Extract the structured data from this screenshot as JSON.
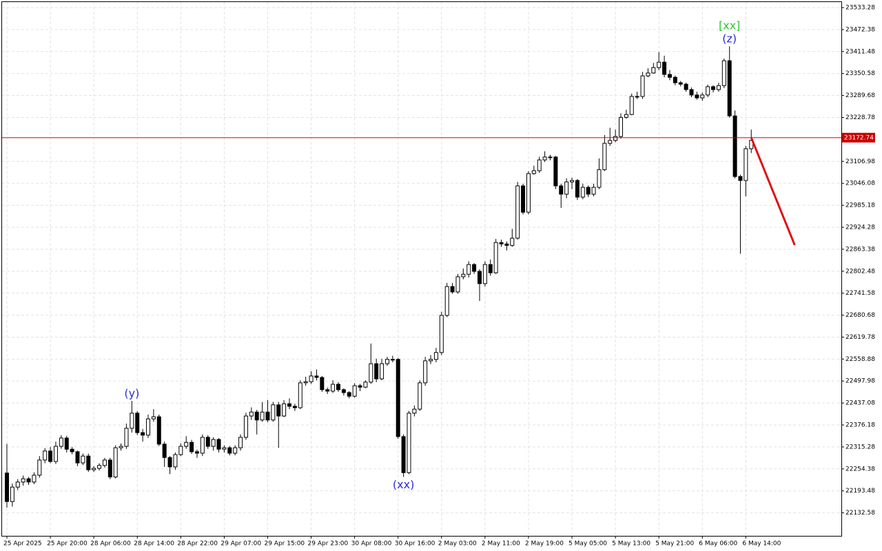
{
  "chart_data": {
    "type": "candlestick",
    "categories": [
      "25 Apr 2025",
      null,
      null,
      null,
      null,
      null,
      null,
      null,
      "25 Apr 20:00",
      null,
      null,
      null,
      null,
      null,
      null,
      null,
      "28 Apr 06:00",
      null,
      null,
      null,
      null,
      null,
      null,
      null,
      "28 Apr 14:00",
      null,
      null,
      null,
      null,
      null,
      null,
      null,
      "28 Apr 22:00",
      null,
      null,
      null,
      null,
      null,
      null,
      null,
      "29 Apr 07:00",
      null,
      null,
      null,
      null,
      null,
      null,
      null,
      "29 Apr 15:00",
      null,
      null,
      null,
      null,
      null,
      null,
      null,
      "29 Apr 23:00",
      null,
      null,
      null,
      null,
      null,
      null,
      null,
      "30 Apr 08:00",
      null,
      null,
      null,
      null,
      null,
      null,
      null,
      "30 Apr 16:00",
      null,
      null,
      null,
      null,
      null,
      null,
      null,
      "2 May 03:00",
      null,
      null,
      null,
      null,
      null,
      null,
      null,
      "2 May 11:00",
      null,
      null,
      null,
      null,
      null,
      null,
      null,
      "2 May 19:00",
      null,
      null,
      null,
      null,
      null,
      null,
      null,
      "5 May 05:00",
      null,
      null,
      null,
      null,
      null,
      null,
      null,
      "5 May 13:00",
      null,
      null,
      null,
      null,
      null,
      null,
      null,
      "5 May 21:00",
      null,
      null,
      null,
      null,
      null,
      null,
      null,
      "6 May 06:00",
      null,
      null,
      null,
      null,
      null,
      null,
      null,
      "6 May 14:00",
      null
    ],
    "open": [
      22243,
      22164,
      22204,
      22218,
      22227,
      22218,
      22237,
      22279,
      22304,
      22275,
      22317,
      22340,
      22309,
      22302,
      22271,
      22290,
      22252,
      22256,
      22264,
      22279,
      22232,
      22313,
      22317,
      22367,
      22409,
      22355,
      22348,
      22393,
      22399,
      22323,
      22286,
      22260,
      22294,
      22317,
      22328,
      22302,
      22298,
      22342,
      22317,
      22336,
      22309,
      22313,
      22298,
      22313,
      22342,
      22401,
      22412,
      22390,
      22412,
      22390,
      22432,
      22401,
      22435,
      22428,
      22424,
      22493,
      22496,
      22512,
      22508,
      22474,
      22470,
      22489,
      22474,
      22466,
      22456,
      22485,
      22481,
      22495,
      22546,
      22504,
      22546,
      22558,
      22558,
      22344,
      22244,
      22409,
      22420,
      22493,
      22554,
      22558,
      22577,
      22680,
      22760,
      22745,
      22787,
      22794,
      22821,
      22802,
      22768,
      22821,
      22798,
      22882,
      22878,
      22874,
      22894,
      23039,
      22966,
      23073,
      23081,
      23111,
      23119,
      23119,
      23039,
      23016,
      23050,
      23054,
      23008,
      23035,
      23016,
      23035,
      23084,
      23157,
      23165,
      23176,
      23229,
      23237,
      23287,
      23287,
      23344,
      23352,
      23367,
      23382,
      23348,
      23340,
      23325,
      23321,
      23306,
      23291,
      23283,
      23291,
      23314,
      23306,
      23317,
      23386,
      23233,
      23065,
      23054,
      23142
    ],
    "high": [
      22324,
      22214,
      22226,
      22236,
      22232,
      22245,
      22290,
      22312,
      22315,
      22330,
      22348,
      22346,
      22315,
      22305,
      22297,
      22297,
      22262,
      22270,
      22285,
      22285,
      22320,
      22325,
      22380,
      22443,
      22415,
      22365,
      22405,
      22420,
      22405,
      22330,
      22290,
      22300,
      22325,
      22345,
      22335,
      22308,
      22350,
      22348,
      22342,
      22340,
      22320,
      22318,
      22320,
      22350,
      22410,
      22425,
      22418,
      22440,
      22445,
      22440,
      22440,
      22445,
      22450,
      22435,
      22500,
      22510,
      22525,
      22530,
      22512,
      22480,
      22500,
      22495,
      22478,
      22470,
      22492,
      22490,
      22500,
      22602,
      22560,
      22560,
      22565,
      22568,
      22562,
      22350,
      22415,
      22430,
      22500,
      22565,
      22570,
      22590,
      22690,
      22770,
      22770,
      22795,
      22810,
      22830,
      22825,
      22808,
      22830,
      22835,
      22892,
      22890,
      22885,
      22920,
      23050,
      23045,
      23080,
      23095,
      23120,
      23135,
      23125,
      23122,
      23045,
      23060,
      23062,
      23058,
      23045,
      23040,
      23045,
      23115,
      23180,
      23200,
      23195,
      23240,
      23250,
      23295,
      23300,
      23355,
      23365,
      23380,
      23410,
      23400,
      23360,
      23345,
      23330,
      23325,
      23312,
      23300,
      23298,
      23320,
      23318,
      23325,
      23392,
      23426,
      23248,
      23070,
      23150,
      23195
    ],
    "low": [
      22147,
      22150,
      22196,
      22208,
      22210,
      22212,
      22230,
      22270,
      22270,
      22268,
      22310,
      22300,
      22295,
      22262,
      22265,
      22246,
      22246,
      22250,
      22258,
      22226,
      22228,
      22305,
      22310,
      22355,
      22348,
      22330,
      22340,
      22385,
      22318,
      22260,
      22240,
      22252,
      22290,
      22310,
      22296,
      22285,
      22290,
      22310,
      22305,
      22300,
      22300,
      22292,
      22292,
      22305,
      22335,
      22390,
      22350,
      22385,
      22384,
      22385,
      22313,
      22398,
      22420,
      22415,
      22420,
      22485,
      22490,
      22500,
      22468,
      22462,
      22465,
      22468,
      22458,
      22450,
      22452,
      22470,
      22478,
      22490,
      22495,
      22500,
      22540,
      22550,
      22338,
      22232,
      22240,
      22400,
      22415,
      22485,
      22545,
      22550,
      22570,
      22675,
      22740,
      22740,
      22780,
      22785,
      22795,
      22720,
      22760,
      22790,
      22795,
      22870,
      22860,
      22870,
      22890,
      22960,
      22960,
      23070,
      23075,
      23105,
      23110,
      23030,
      22978,
      23005,
      23030,
      23000,
      23002,
      23008,
      23010,
      23030,
      23080,
      23150,
      23160,
      23170,
      23225,
      23235,
      23280,
      23280,
      23340,
      23350,
      23360,
      23340,
      23332,
      23318,
      23315,
      23300,
      23285,
      23278,
      23275,
      23285,
      23298,
      23300,
      23310,
      23228,
      23060,
      22851,
      23010,
      23130
    ],
    "close": [
      22164,
      22204,
      22218,
      22227,
      22218,
      22237,
      22279,
      22304,
      22275,
      22317,
      22340,
      22309,
      22302,
      22271,
      22290,
      22252,
      22256,
      22264,
      22279,
      22232,
      22313,
      22317,
      22367,
      22409,
      22355,
      22348,
      22393,
      22399,
      22323,
      22286,
      22260,
      22294,
      22317,
      22328,
      22302,
      22298,
      22342,
      22317,
      22336,
      22309,
      22313,
      22298,
      22313,
      22342,
      22401,
      22412,
      22390,
      22412,
      22390,
      22432,
      22401,
      22435,
      22428,
      22424,
      22493,
      22496,
      22512,
      22508,
      22474,
      22470,
      22489,
      22474,
      22466,
      22456,
      22485,
      22481,
      22495,
      22546,
      22504,
      22546,
      22558,
      22558,
      22344,
      22244,
      22409,
      22420,
      22493,
      22554,
      22558,
      22577,
      22680,
      22760,
      22745,
      22787,
      22794,
      22821,
      22802,
      22768,
      22821,
      22798,
      22882,
      22878,
      22874,
      22894,
      23039,
      22966,
      23073,
      23081,
      23111,
      23119,
      23119,
      23039,
      23016,
      23050,
      23054,
      23008,
      23035,
      23016,
      23035,
      23084,
      23157,
      23165,
      23176,
      23229,
      23237,
      23287,
      23287,
      23344,
      23352,
      23367,
      23382,
      23348,
      23340,
      23325,
      23321,
      23306,
      23291,
      23283,
      23291,
      23314,
      23306,
      23317,
      23386,
      23233,
      23065,
      23054,
      23142,
      23165
    ],
    "up_color": "#ffffff",
    "down_color": "#000000",
    "ylim": [
      22068.8,
      23548.6
    ],
    "yticks": [
      22132.58,
      22193.48,
      22254.38,
      22315.28,
      22376.18,
      22437.08,
      22497.98,
      22558.88,
      22619.78,
      22680.68,
      22741.58,
      22802.48,
      22863.38,
      22924.28,
      22985.18,
      23046.08,
      23106.98,
      23228.78,
      23289.68,
      23350.58,
      23411.48,
      23472.38,
      23533.28
    ],
    "grid": true,
    "price_line": 23172.74,
    "price_line_color": "#cc0000",
    "annotations": [
      {
        "text": "(y)",
        "index": 23,
        "side": "above",
        "color": "#2b2bd6"
      },
      {
        "text": "(xx)",
        "index": 73,
        "side": "below",
        "color": "#2b2bd6"
      },
      {
        "text": "(z)",
        "index": 133,
        "side": "above",
        "color": "#2b2bd6"
      },
      {
        "text": "[xx]",
        "index": 133,
        "side": "above",
        "color": "#2fc42f"
      }
    ],
    "forecast": {
      "x": [
        137,
        145
      ],
      "values": [
        23172.74,
        22875
      ],
      "color": "#e01010"
    }
  }
}
